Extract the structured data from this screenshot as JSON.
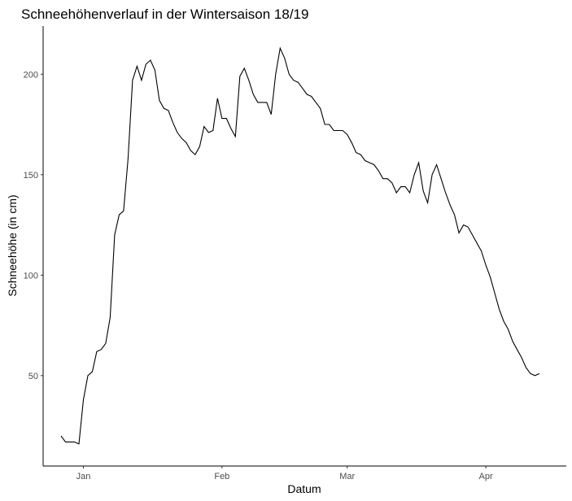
{
  "chart_data": {
    "type": "line",
    "title": "Schneehöhenverlauf in der Wintersaison 18/19",
    "xlabel": "Datum",
    "ylabel": "Schneehöhe (in cm)",
    "x_axis": {
      "type": "date",
      "range": [
        "2018-12-23",
        "2019-04-19"
      ],
      "ticks": [
        {
          "date": "2019-01-01",
          "label": "Jan"
        },
        {
          "date": "2019-02-01",
          "label": "Feb"
        },
        {
          "date": "2019-03-01",
          "label": "Mar"
        },
        {
          "date": "2019-04-01",
          "label": "Apr"
        }
      ]
    },
    "y_axis": {
      "range": [
        5,
        224
      ],
      "ticks": [
        50,
        100,
        150,
        200
      ]
    },
    "grid": false,
    "legend": "none",
    "colors": {
      "line": "#000000",
      "axis": "#000000",
      "tick_text": "#4d4d4d"
    },
    "series": [
      {
        "x": [
          "2018-12-27",
          "2018-12-28",
          "2018-12-29",
          "2018-12-30",
          "2018-12-31",
          "2019-01-01",
          "2019-01-02",
          "2019-01-03",
          "2019-01-04",
          "2019-01-05",
          "2019-01-06",
          "2019-01-07",
          "2019-01-08",
          "2019-01-09",
          "2019-01-10",
          "2019-01-11",
          "2019-01-12",
          "2019-01-13",
          "2019-01-14",
          "2019-01-15",
          "2019-01-16",
          "2019-01-17",
          "2019-01-18",
          "2019-01-19",
          "2019-01-20",
          "2019-01-21",
          "2019-01-22",
          "2019-01-23",
          "2019-01-24",
          "2019-01-25",
          "2019-01-26",
          "2019-01-27",
          "2019-01-28",
          "2019-01-29",
          "2019-01-30",
          "2019-01-31",
          "2019-02-01",
          "2019-02-02",
          "2019-02-03",
          "2019-02-04",
          "2019-02-05",
          "2019-02-06",
          "2019-02-07",
          "2019-02-08",
          "2019-02-09",
          "2019-02-10",
          "2019-02-11",
          "2019-02-12",
          "2019-02-13",
          "2019-02-14",
          "2019-02-15",
          "2019-02-16",
          "2019-02-17",
          "2019-02-18",
          "2019-02-19",
          "2019-02-20",
          "2019-02-21",
          "2019-02-22",
          "2019-02-23",
          "2019-02-24",
          "2019-02-25",
          "2019-02-26",
          "2019-02-27",
          "2019-02-28",
          "2019-03-01",
          "2019-03-02",
          "2019-03-03",
          "2019-03-04",
          "2019-03-05",
          "2019-03-06",
          "2019-03-07",
          "2019-03-08",
          "2019-03-09",
          "2019-03-10",
          "2019-03-11",
          "2019-03-12",
          "2019-03-13",
          "2019-03-14",
          "2019-03-15",
          "2019-03-16",
          "2019-03-17",
          "2019-03-18",
          "2019-03-19",
          "2019-03-20",
          "2019-03-21",
          "2019-03-22",
          "2019-03-23",
          "2019-03-24",
          "2019-03-25",
          "2019-03-26",
          "2019-03-27",
          "2019-03-28",
          "2019-03-29",
          "2019-03-30",
          "2019-03-31",
          "2019-04-01",
          "2019-04-02",
          "2019-04-03",
          "2019-04-04",
          "2019-04-05",
          "2019-04-06",
          "2019-04-07",
          "2019-04-08",
          "2019-04-09",
          "2019-04-10",
          "2019-04-11",
          "2019-04-12",
          "2019-04-13"
        ],
        "values": [
          20,
          17,
          17,
          17,
          16,
          38,
          50,
          52,
          62,
          63,
          66,
          79,
          120,
          130,
          132,
          158,
          197,
          204,
          197,
          205,
          207,
          202,
          187,
          183,
          182,
          176,
          171,
          168,
          166,
          162,
          160,
          164,
          174,
          171,
          172,
          188,
          178,
          178,
          173,
          169,
          199,
          203,
          197,
          190,
          186,
          186,
          186,
          180,
          200,
          213,
          208,
          200,
          197,
          196,
          193,
          190,
          189,
          186,
          183,
          175,
          175,
          172,
          172,
          172,
          170,
          166,
          161,
          160,
          157,
          156,
          155,
          152,
          148,
          148,
          146,
          141,
          144,
          144,
          141,
          150,
          156,
          142,
          136,
          150,
          155,
          148,
          141,
          135,
          130,
          121,
          125,
          124,
          120,
          116,
          112,
          105,
          99,
          91,
          83,
          77,
          73,
          67,
          63,
          59,
          54,
          51,
          50,
          51
        ]
      }
    ]
  }
}
